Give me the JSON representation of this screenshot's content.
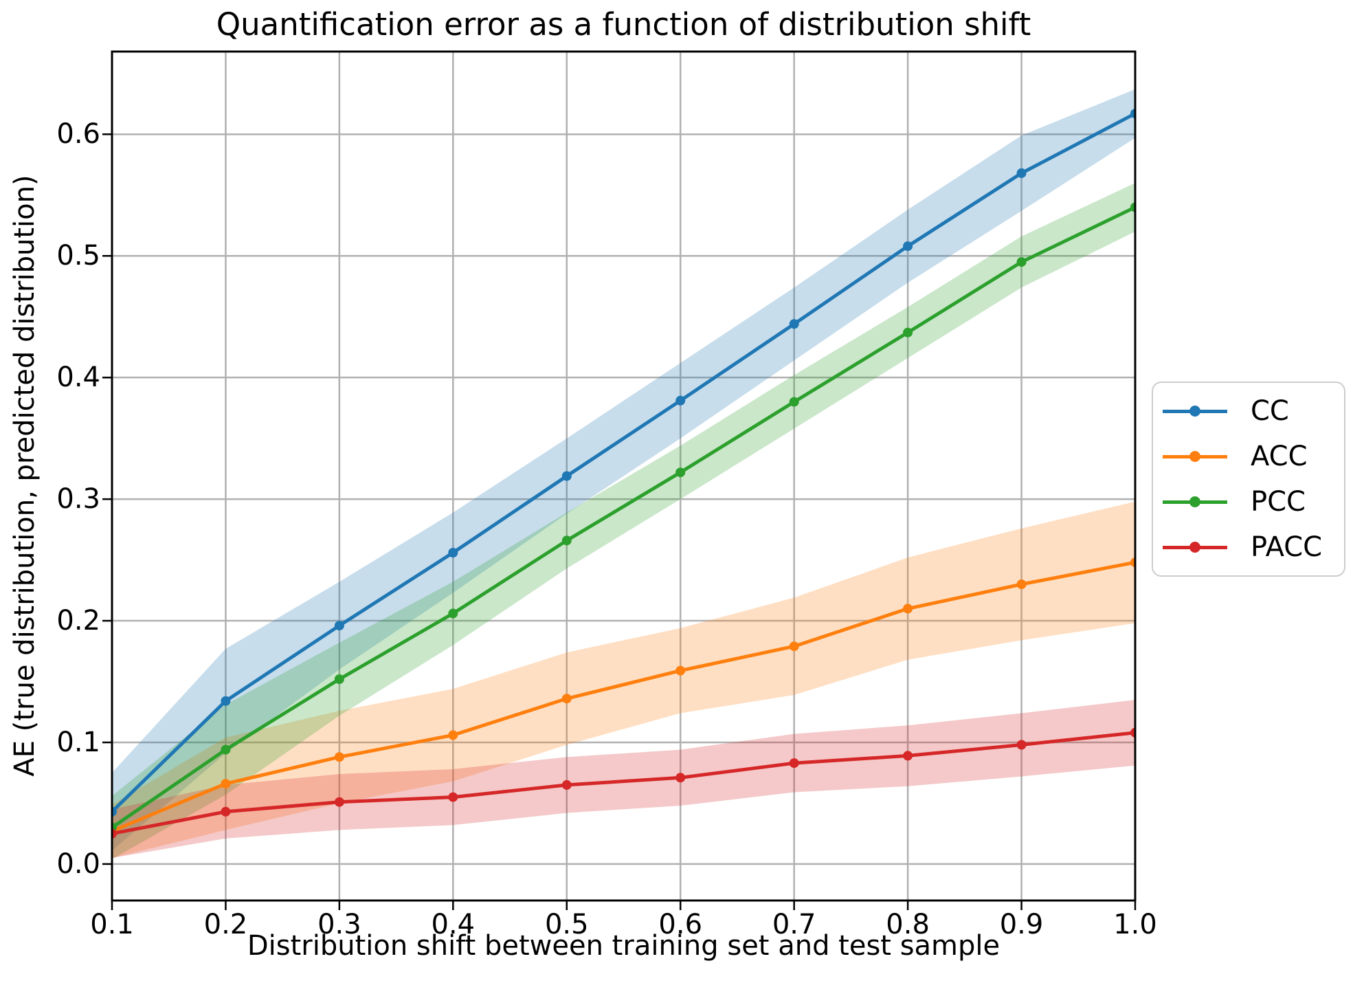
{
  "title": "Quantification error as a function of distribution shift",
  "axes": {
    "xlabel": "Distribution shift between training set and test sample",
    "ylabel": "AE (true distribution, predicted distribution)"
  },
  "chart_data": {
    "type": "line",
    "title": "Quantification error as a function of distribution shift",
    "xlabel": "Distribution shift between training set and test sample",
    "ylabel": "AE (true distribution, predicted distribution)",
    "x": [
      0.1,
      0.2,
      0.3,
      0.4,
      0.5,
      0.6,
      0.7,
      0.8,
      0.9,
      1.0
    ],
    "series": [
      {
        "name": "CC",
        "color": "#1f77b4",
        "values": [
          0.043,
          0.134,
          0.196,
          0.256,
          0.319,
          0.381,
          0.444,
          0.508,
          0.568,
          0.617
        ],
        "band": [
          0.032,
          0.043,
          0.036,
          0.033,
          0.031,
          0.031,
          0.03,
          0.03,
          0.031,
          0.02
        ]
      },
      {
        "name": "ACC",
        "color": "#ff7f0e",
        "values": [
          0.027,
          0.066,
          0.088,
          0.106,
          0.136,
          0.159,
          0.179,
          0.21,
          0.23,
          0.248
        ],
        "band": [
          0.022,
          0.038,
          0.038,
          0.038,
          0.038,
          0.035,
          0.04,
          0.042,
          0.046,
          0.05
        ]
      },
      {
        "name": "PCC",
        "color": "#2ca02c",
        "values": [
          0.03,
          0.094,
          0.152,
          0.206,
          0.266,
          0.322,
          0.38,
          0.437,
          0.495,
          0.54
        ],
        "band": [
          0.026,
          0.037,
          0.03,
          0.026,
          0.023,
          0.022,
          0.022,
          0.021,
          0.021,
          0.02
        ]
      },
      {
        "name": "PACC",
        "color": "#d62728",
        "values": [
          0.025,
          0.043,
          0.051,
          0.055,
          0.065,
          0.071,
          0.083,
          0.089,
          0.098,
          0.108
        ],
        "band": [
          0.02,
          0.022,
          0.023,
          0.023,
          0.023,
          0.023,
          0.024,
          0.025,
          0.026,
          0.027
        ]
      }
    ],
    "band_alpha": 0.25,
    "xlim": [
      0.1,
      1.0
    ],
    "ylim": [
      -0.03,
      0.668
    ],
    "xticks": [
      0.1,
      0.2,
      0.3,
      0.4,
      0.5,
      0.6,
      0.7,
      0.8,
      0.9,
      1.0
    ],
    "yticks": [
      0.0,
      0.1,
      0.2,
      0.3,
      0.4,
      0.5,
      0.6
    ],
    "grid": true,
    "grid_color": "#b0b0b0",
    "spine_color": "#000000",
    "background": "#ffffff",
    "legend_position": "outside-right",
    "legend_entries": [
      "CC",
      "ACC",
      "PCC",
      "PACC"
    ]
  }
}
